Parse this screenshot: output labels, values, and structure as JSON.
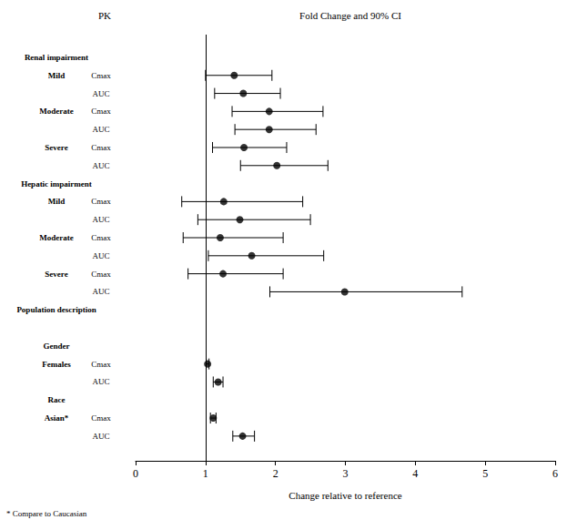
{
  "chart_data": {
    "type": "forest",
    "title": "Fold Change and 90% CI",
    "column_header": "PK",
    "x_label": "Change relative to reference",
    "footnote": "* Compare to Caucasian",
    "xlim": [
      0,
      6
    ],
    "xticks": [
      0,
      1,
      2,
      3,
      4,
      5,
      6
    ],
    "reference_line": 1,
    "categories": [
      "Renal impairment",
      "Mild",
      null,
      "Moderate",
      null,
      "Severe",
      null,
      "Hepatic impairment",
      "Mild",
      null,
      "Moderate",
      null,
      "Severe",
      null,
      "Population description",
      null,
      "Gender",
      "Females",
      null,
      "Race",
      "Asian*",
      null
    ],
    "measures": [
      null,
      "Cmax",
      "AUC",
      "Cmax",
      "AUC",
      "Cmax",
      "AUC",
      null,
      "Cmax",
      "AUC",
      "Cmax",
      "AUC",
      "Cmax",
      "AUC",
      null,
      null,
      null,
      "Cmax",
      "AUC",
      null,
      "Cmax",
      "AUC"
    ],
    "values": [
      null,
      1.41,
      1.54,
      1.91,
      1.91,
      1.55,
      2.02,
      null,
      1.26,
      1.49,
      1.21,
      1.66,
      1.25,
      2.99,
      null,
      null,
      null,
      1.03,
      1.18,
      null,
      1.11,
      1.53
    ],
    "ci_low": [
      null,
      1.0,
      1.13,
      1.38,
      1.42,
      1.1,
      1.5,
      null,
      0.66,
      0.89,
      0.68,
      1.04,
      0.75,
      1.92,
      null,
      null,
      null,
      1.01,
      1.11,
      null,
      1.07,
      1.39
    ],
    "ci_high": [
      null,
      1.95,
      2.07,
      2.68,
      2.58,
      2.16,
      2.75,
      null,
      2.39,
      2.5,
      2.11,
      2.69,
      2.11,
      4.67,
      null,
      null,
      null,
      1.05,
      1.25,
      null,
      1.15,
      1.7
    ],
    "color": "#000000",
    "marker": "circle",
    "grid": false
  }
}
